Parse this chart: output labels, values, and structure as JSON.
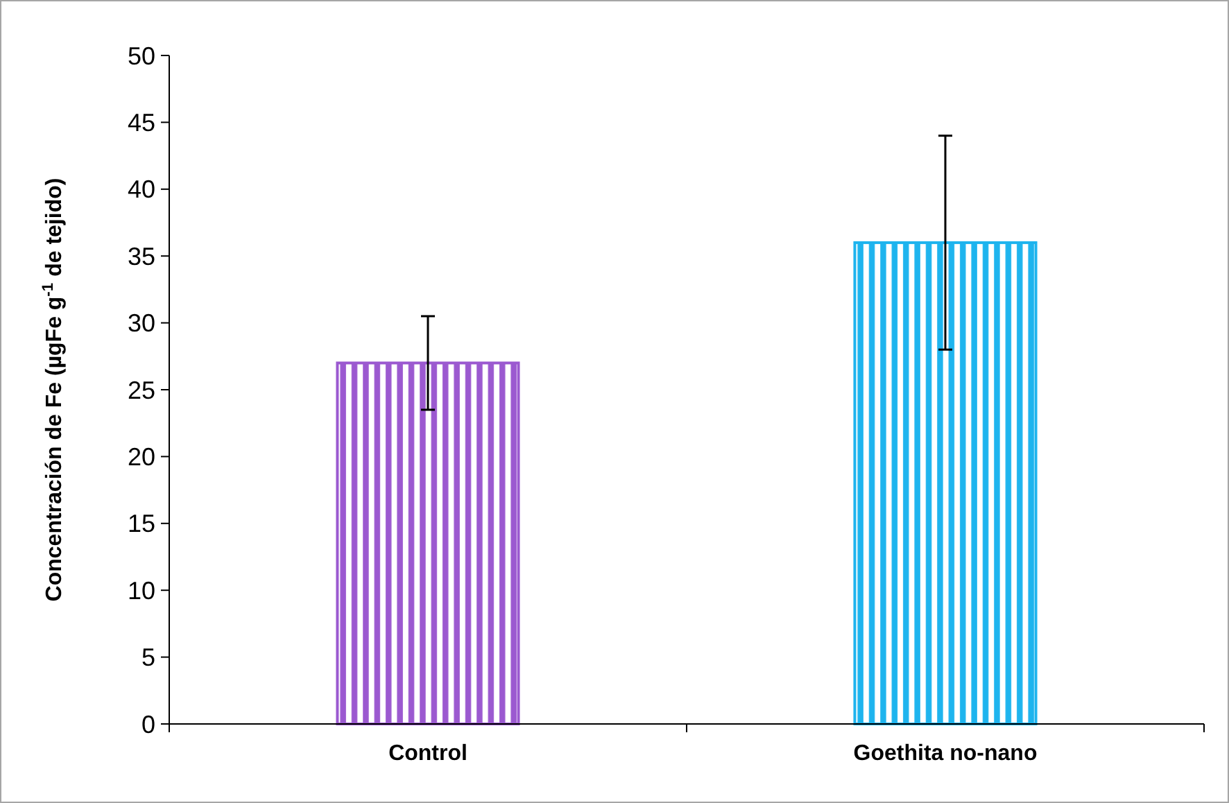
{
  "chart_data": {
    "type": "bar",
    "ylabel": "Concentración de Fe (µgFe g$^{-1}$ de tejido)",
    "categories": [
      "Control",
      "Goethita no-nano"
    ],
    "values": [
      27,
      36
    ],
    "colors": [
      "#9b59d0",
      "#1eb4ee"
    ],
    "errors": [
      3.5,
      8
    ],
    "ylim": [
      0,
      50
    ],
    "yticks": [
      0,
      5,
      10,
      15,
      20,
      25,
      30,
      35,
      40,
      45,
      50
    ],
    "grid": false
  }
}
